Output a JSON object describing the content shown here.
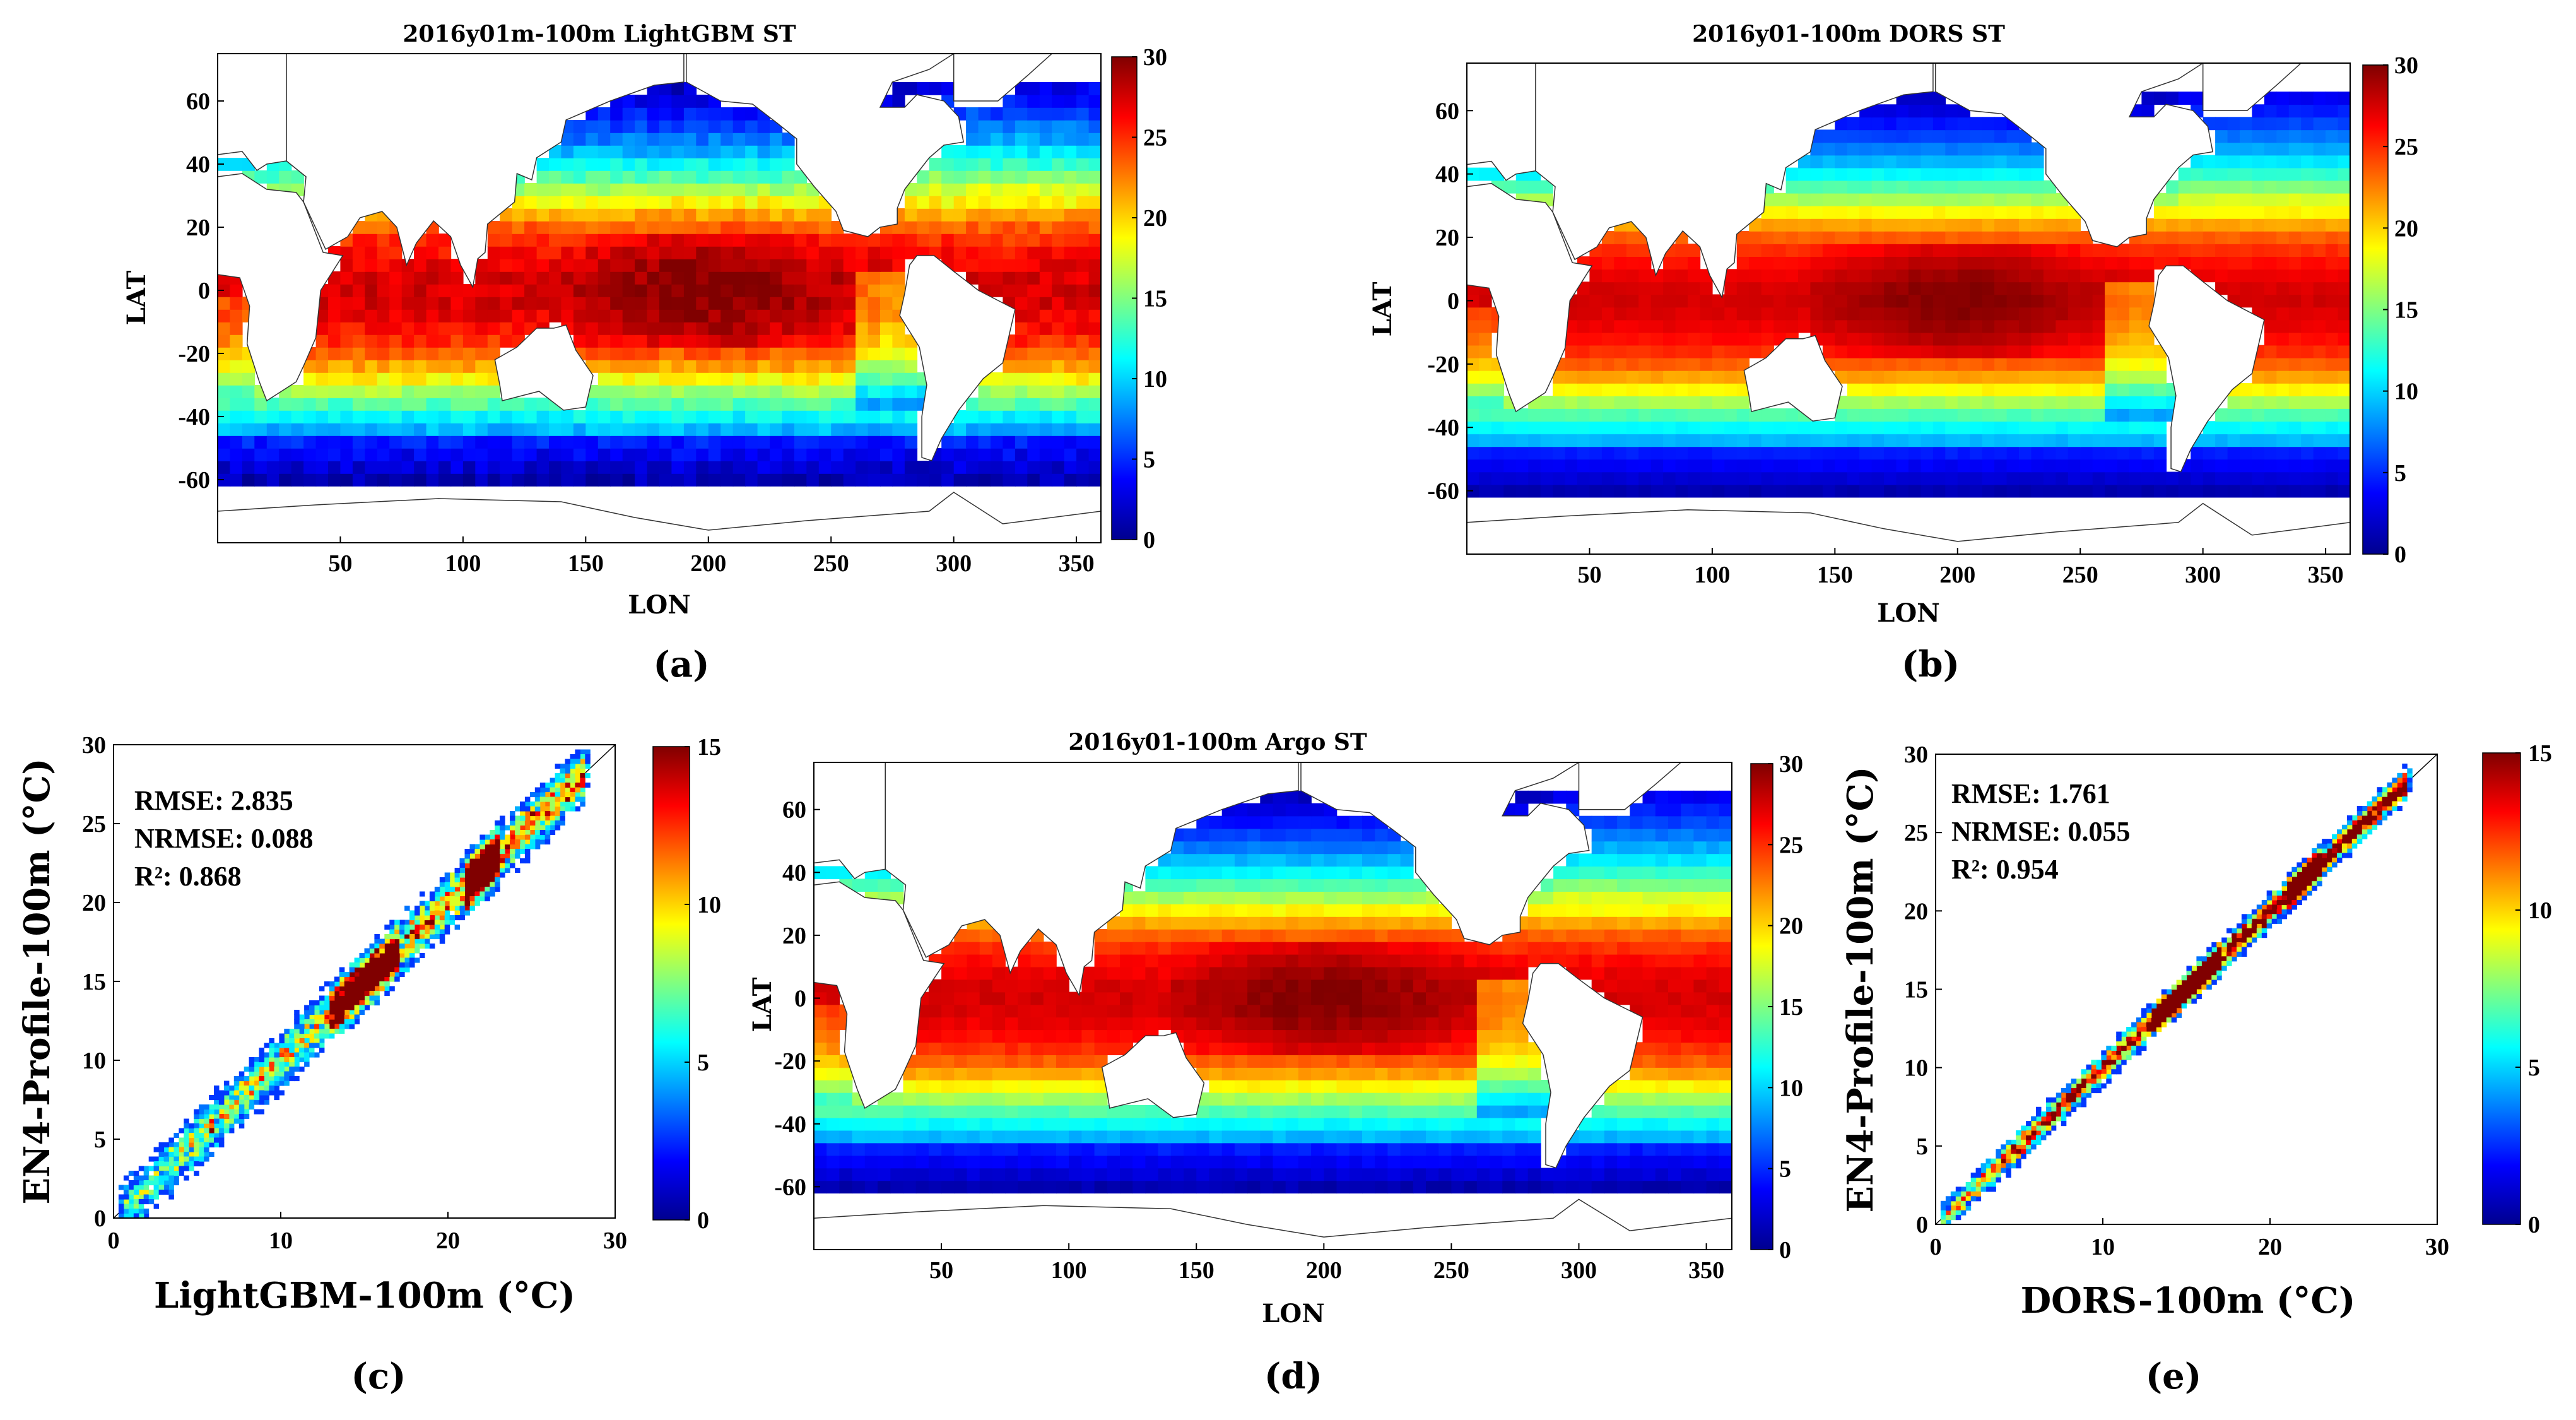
{
  "chart_data": [
    {
      "id": "a",
      "type": "heatmap",
      "title": "2016y01m-100m LightGBM ST",
      "xlabel": "LON",
      "ylabel": "LAT",
      "xlim": [
        0,
        360
      ],
      "ylim": [
        -80,
        75
      ],
      "xticks": [
        50,
        100,
        150,
        200,
        250,
        300,
        350
      ],
      "yticks": [
        60,
        40,
        20,
        0,
        -20,
        -40,
        -60
      ],
      "colorbar": {
        "min": 0,
        "max": 30,
        "ticks": [
          30,
          25,
          20,
          15,
          10,
          5,
          0
        ]
      },
      "panel_label": "(a)",
      "variant": 0
    },
    {
      "id": "b",
      "type": "heatmap",
      "title": "2016y01-100m DORS ST",
      "xlabel": "LON",
      "ylabel": "LAT",
      "xlim": [
        0,
        360
      ],
      "ylim": [
        -80,
        75
      ],
      "xticks": [
        50,
        100,
        150,
        200,
        250,
        300,
        350
      ],
      "yticks": [
        60,
        40,
        20,
        0,
        -20,
        -40,
        -60
      ],
      "colorbar": {
        "min": 0,
        "max": 30,
        "ticks": [
          30,
          25,
          20,
          15,
          10,
          5,
          0
        ]
      },
      "panel_label": "(b)",
      "variant": 1
    },
    {
      "id": "c",
      "type": "scatter",
      "xlabel": "LightGBM-100m (°C)",
      "ylabel": "EN4-Profile-100m (°C)",
      "xlim": [
        0,
        30
      ],
      "ylim": [
        0,
        30
      ],
      "xticks": [
        0,
        10,
        20,
        30
      ],
      "yticks": [
        30,
        25,
        20,
        15,
        10,
        5,
        0
      ],
      "stats": [
        "RMSE: 2.835",
        "NRMSE: 0.088",
        "R²: 0.868"
      ],
      "colorbar": {
        "min": 0,
        "max": 15,
        "ticks": [
          15,
          10,
          5,
          0
        ]
      },
      "panel_label": "(c)",
      "spread": 1.1
    },
    {
      "id": "d",
      "type": "heatmap",
      "title": "2016y01-100m Argo ST",
      "xlabel": "LON",
      "ylabel": "LAT",
      "xlim": [
        0,
        360
      ],
      "ylim": [
        -80,
        75
      ],
      "xticks": [
        50,
        100,
        150,
        200,
        250,
        300,
        350
      ],
      "yticks": [
        60,
        40,
        20,
        0,
        -20,
        -40,
        -60
      ],
      "colorbar": {
        "min": 0,
        "max": 30,
        "ticks": [
          30,
          25,
          20,
          15,
          10,
          5,
          0
        ]
      },
      "panel_label": "(d)",
      "variant": 2
    },
    {
      "id": "e",
      "type": "scatter",
      "xlabel": "DORS-100m (°C)",
      "ylabel": "EN4-Profile-100m (°C)",
      "xlim": [
        0,
        30
      ],
      "ylim": [
        0,
        30
      ],
      "xticks": [
        0,
        10,
        20,
        30
      ],
      "yticks": [
        30,
        25,
        20,
        15,
        10,
        5,
        0
      ],
      "stats": [
        "RMSE: 1.761",
        "NRMSE: 0.055",
        "R²: 0.954"
      ],
      "colorbar": {
        "min": 0,
        "max": 15,
        "ticks": [
          15,
          10,
          5,
          0
        ]
      },
      "panel_label": "(e)",
      "spread": 0.6
    }
  ]
}
